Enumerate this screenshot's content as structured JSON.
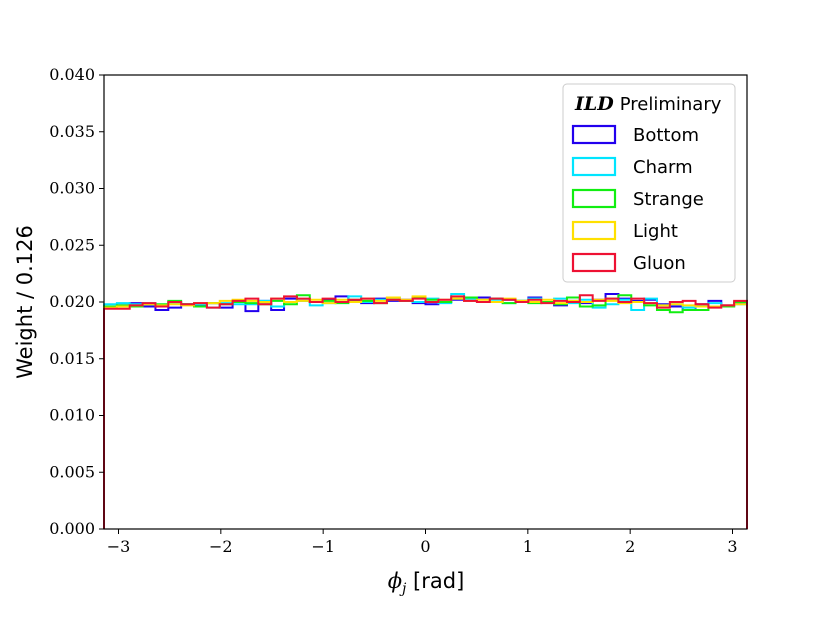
{
  "chart_data": {
    "type": "step-histogram",
    "xlabel_symbol": "ϕ",
    "xlabel_subscript": "j",
    "xlabel_unit": " [rad]",
    "ylabel": "Weight / 0.126",
    "xlim": [
      -3.1416,
      3.1416
    ],
    "ylim": [
      0,
      0.04
    ],
    "xticks": [
      -3,
      -2,
      -1,
      0,
      1,
      2,
      3
    ],
    "xtick_labels": [
      "−3",
      "−2",
      "−1",
      "0",
      "1",
      "2",
      "3"
    ],
    "yticks": [
      0,
      0.005,
      0.01,
      0.015,
      0.02,
      0.025,
      0.03,
      0.035,
      0.04
    ],
    "ytick_labels": [
      "0.000",
      "0.005",
      "0.010",
      "0.015",
      "0.020",
      "0.025",
      "0.030",
      "0.035",
      "0.040"
    ],
    "bin_width": 0.126,
    "n_bins": 50,
    "legend": {
      "placement": "top-right",
      "title_ild": "ILD",
      "title_rest": "Preliminary"
    },
    "series": [
      {
        "name": "Bottom",
        "color": "#2200ee",
        "values": [
          0.0196,
          0.0197,
          0.0199,
          0.0196,
          0.0193,
          0.0195,
          0.0198,
          0.0197,
          0.0199,
          0.0195,
          0.02,
          0.0192,
          0.0201,
          0.0193,
          0.0203,
          0.0201,
          0.02,
          0.0202,
          0.0205,
          0.0201,
          0.0199,
          0.0203,
          0.0201,
          0.0202,
          0.0199,
          0.0198,
          0.02,
          0.0202,
          0.0201,
          0.0204,
          0.0203,
          0.0202,
          0.0201,
          0.0204,
          0.02,
          0.0197,
          0.0201,
          0.0199,
          0.0202,
          0.0207,
          0.0203,
          0.0201,
          0.0202,
          0.0198,
          0.0196,
          0.0193,
          0.0198,
          0.0201,
          0.0197,
          0.0199
        ]
      },
      {
        "name": "Charm",
        "color": "#00e5ff",
        "values": [
          0.0198,
          0.0199,
          0.0198,
          0.0199,
          0.0197,
          0.0199,
          0.0198,
          0.0198,
          0.0195,
          0.0199,
          0.0198,
          0.0198,
          0.0201,
          0.0196,
          0.02,
          0.0201,
          0.0197,
          0.0199,
          0.02,
          0.0205,
          0.02,
          0.0202,
          0.0204,
          0.0201,
          0.02,
          0.0203,
          0.0199,
          0.0207,
          0.0203,
          0.02,
          0.0202,
          0.0199,
          0.0201,
          0.0203,
          0.02,
          0.0203,
          0.0199,
          0.0202,
          0.0195,
          0.0198,
          0.0202,
          0.0193,
          0.0203,
          0.0197,
          0.0198,
          0.0195,
          0.0197,
          0.0199,
          0.0196,
          0.0198
        ]
      },
      {
        "name": "Strange",
        "color": "#11ee11",
        "values": [
          0.0196,
          0.0197,
          0.0196,
          0.0198,
          0.0198,
          0.0201,
          0.0198,
          0.0196,
          0.0199,
          0.0198,
          0.02,
          0.0199,
          0.0198,
          0.0201,
          0.0198,
          0.0206,
          0.02,
          0.0201,
          0.0199,
          0.0202,
          0.0201,
          0.0199,
          0.0202,
          0.0201,
          0.0204,
          0.0202,
          0.02,
          0.0203,
          0.0204,
          0.02,
          0.0203,
          0.0199,
          0.0201,
          0.0199,
          0.02,
          0.0198,
          0.0204,
          0.0196,
          0.0197,
          0.0203,
          0.0206,
          0.02,
          0.0197,
          0.0193,
          0.0191,
          0.0193,
          0.0193,
          0.0196,
          0.0196,
          0.02
        ]
      },
      {
        "name": "Light",
        "color": "#ffe000",
        "values": [
          0.0195,
          0.0196,
          0.0197,
          0.0198,
          0.0197,
          0.0198,
          0.0197,
          0.0199,
          0.0199,
          0.0201,
          0.0202,
          0.0201,
          0.02,
          0.0203,
          0.02,
          0.0201,
          0.0202,
          0.0199,
          0.0202,
          0.02,
          0.0203,
          0.0201,
          0.0204,
          0.0202,
          0.0205,
          0.02,
          0.0202,
          0.0203,
          0.0201,
          0.0202,
          0.02,
          0.0203,
          0.0201,
          0.02,
          0.0202,
          0.0199,
          0.0201,
          0.02,
          0.0202,
          0.0201,
          0.0199,
          0.02,
          0.0199,
          0.0197,
          0.0198,
          0.0197,
          0.0196,
          0.0196,
          0.0197,
          0.0198
        ]
      },
      {
        "name": "Gluon",
        "color": "#ee1133",
        "values": [
          0.0194,
          0.0194,
          0.0197,
          0.0199,
          0.0196,
          0.02,
          0.0198,
          0.0199,
          0.0195,
          0.0198,
          0.0201,
          0.0203,
          0.0198,
          0.0203,
          0.0205,
          0.0203,
          0.02,
          0.0203,
          0.02,
          0.0202,
          0.0203,
          0.0199,
          0.0202,
          0.0201,
          0.0203,
          0.02,
          0.0202,
          0.0205,
          0.0201,
          0.02,
          0.0203,
          0.0202,
          0.02,
          0.0202,
          0.0199,
          0.0201,
          0.02,
          0.0206,
          0.0201,
          0.0203,
          0.02,
          0.0203,
          0.0199,
          0.0195,
          0.02,
          0.0201,
          0.0198,
          0.0195,
          0.0197,
          0.0201
        ]
      }
    ]
  }
}
